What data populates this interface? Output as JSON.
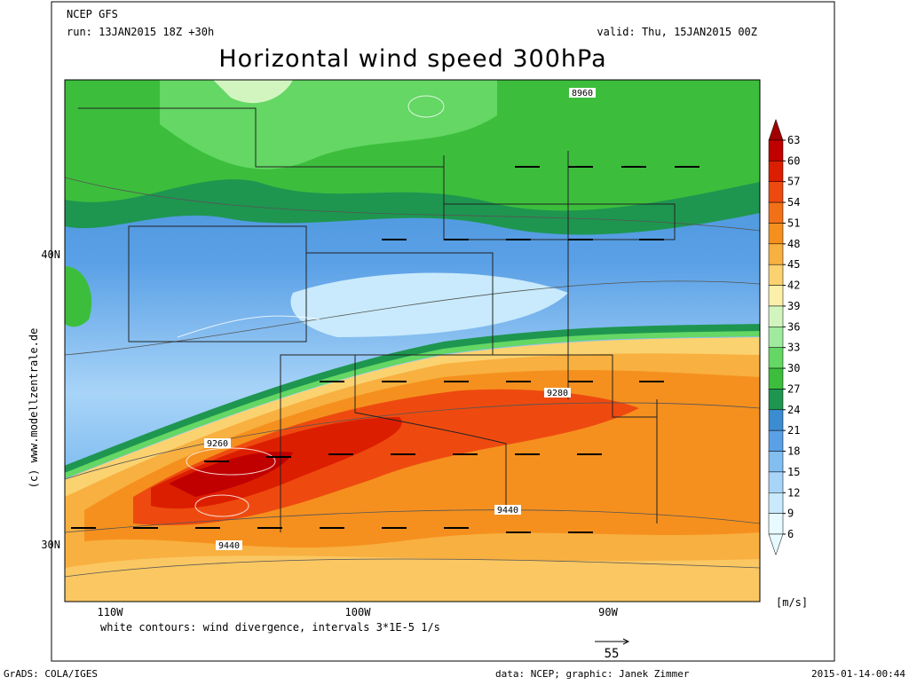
{
  "header": {
    "model": "NCEP GFS",
    "run": "run: 13JAN2015 18Z +30h",
    "valid": "valid: Thu, 15JAN2015 00Z",
    "title": "Horizontal wind speed 300hPa"
  },
  "map": {
    "lat_labels": [
      "40N",
      "30N"
    ],
    "lon_labels": [
      "110W",
      "100W",
      "90W"
    ],
    "contour_labels": [
      "8960",
      "9260",
      "9280",
      "9440",
      "9440"
    ],
    "caption": "white contours: wind divergence, intervals 3*1E-5 1/s",
    "vector_reference": "55",
    "credit": "(c) www.modellzentrale.de"
  },
  "colorbar": {
    "levels": [
      63,
      60,
      57,
      54,
      51,
      48,
      45,
      42,
      39,
      36,
      33,
      30,
      27,
      24,
      21,
      18,
      15,
      12,
      9,
      6
    ],
    "colors": [
      "#a00000",
      "#c00000",
      "#dc1e00",
      "#ee4a10",
      "#f27018",
      "#f5901e",
      "#f8b040",
      "#fbd270",
      "#fcf0a8",
      "#d2f5c0",
      "#a0eaa0",
      "#64d764",
      "#3cbe3c",
      "#1e9650",
      "#3c8cd2",
      "#5aa0e6",
      "#82bef0",
      "#a8d4f8",
      "#c8eafc",
      "#e6faff"
    ],
    "unit": "[m/s]"
  },
  "footer": {
    "software": "GrADS: COLA/IGES",
    "source": "data: NCEP; graphic: Janek Zimmer",
    "timestamp": "2015-01-14-00:44"
  }
}
